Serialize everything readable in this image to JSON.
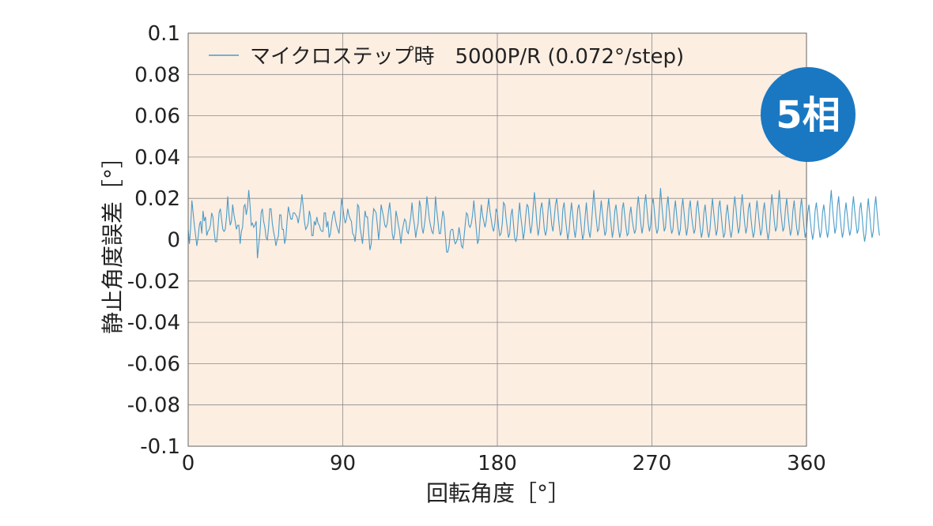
{
  "chart_data": {
    "type": "line",
    "xlabel": "回転角度［°］",
    "ylabel": "静止角度誤差［°］",
    "xlim": [
      0,
      360
    ],
    "ylim": [
      -0.1,
      0.1
    ],
    "xticks": [
      0,
      90,
      180,
      270,
      360
    ],
    "xtick_labels": [
      "0",
      "90",
      "180",
      "270",
      "360"
    ],
    "yticks": [
      0.1,
      0.08,
      0.06,
      0.04,
      0.02,
      0,
      -0.02,
      -0.04,
      -0.06,
      -0.08,
      -0.1
    ],
    "ytick_labels": [
      "0.1",
      "0.08",
      "0.06",
      "0.04",
      "0.02",
      "0",
      "-0.02",
      "-0.04",
      "-0.06",
      "-0.08",
      "-0.1"
    ],
    "grid": true,
    "legend_position": "top-left",
    "series": [
      {
        "name": "マイクロステップ時　5000P/R (0.072°/step)",
        "color": "#4a9cc9",
        "x_start": 0,
        "x_step": 0.72,
        "values": [
          0.005,
          -0.002,
          0.006,
          0.019,
          0.013,
          0.007,
          0.002,
          -0.003,
          0.001,
          0.007,
          0.009,
          0.003,
          0.014,
          0.009,
          0.011,
          0.002,
          0.004,
          0.005,
          0.007,
          0.013,
          0.011,
          0.004,
          -0.001,
          -0.001,
          0.005,
          0.013,
          0.015,
          0.01,
          0.005,
          0.004,
          0.005,
          0.011,
          0.021,
          0.012,
          0.007,
          0.009,
          0.017,
          0.012,
          0.009,
          0.005,
          0.007,
          0.007,
          -0.002,
          0.004,
          0.006,
          0.016,
          0.017,
          0.012,
          0.016,
          0.024,
          0.017,
          0.007,
          0.008,
          0.006,
          0.007,
          0.009,
          -0.009,
          -0.003,
          0.003,
          0.013,
          0.015,
          0.009,
          0.006,
          0.001,
          -0.0,
          0.006,
          0.015,
          0.015,
          0.008,
          0.004,
          0.001,
          -0.003,
          -0.0,
          0.002,
          0.012,
          0.012,
          0.005,
          0.005,
          -0.002,
          0.001,
          0.009,
          0.016,
          0.013,
          0.01,
          0.01,
          0.013,
          0.013,
          0.012,
          0.011,
          0.008,
          0.012,
          0.016,
          0.022,
          0.016,
          0.009,
          0.005,
          0.006,
          0.008,
          0.014,
          0.011,
          0.002,
          0.002,
          0.009,
          0.007,
          0.011,
          0.008,
          0.007,
          0.005,
          0.004,
          0.004,
          0.013,
          0.013,
          0.006,
          0.009,
          0.001,
          0.003,
          0.008,
          0.012,
          0.014,
          0.01,
          0.007,
          0.005,
          0.003,
          0.01,
          0.02,
          0.016,
          0.011,
          0.008,
          0.01,
          0.015,
          0.012,
          0.01,
          0.009,
          0.003,
          0.002,
          -0.001,
          0.006,
          0.017,
          0.016,
          0.006,
          0.002,
          -0.002,
          0.006,
          0.014,
          0.011,
          0.011,
          0.003,
          -0.005,
          -0.002,
          0.008,
          0.015,
          0.014,
          0.013,
          0.007,
          0.0,
          0.006,
          0.017,
          0.014,
          0.011,
          0.007,
          0.006,
          0.008,
          0.014,
          0.018,
          0.011,
          0.003,
          -0.0,
          0.003,
          0.014,
          0.011,
          0.007,
          0.004,
          -0.002,
          0.004,
          0.007,
          0.01,
          0.009,
          0.004,
          0.003,
          0.007,
          0.011,
          0.018,
          0.011,
          0.007,
          0.001,
          0.005,
          0.008,
          0.019,
          0.016,
          0.006,
          0.003,
          0.007,
          0.012,
          0.021,
          0.016,
          0.01,
          0.007,
          0.004,
          0.003,
          0.008,
          0.021,
          0.014,
          0.009,
          0.003,
          0.003,
          0.009,
          0.014,
          0.011,
          0.002,
          -0.006,
          -0.006,
          -0.003,
          0.004,
          0.005,
          0.005,
          0.0,
          -0.002,
          -0.001,
          0.001,
          0.006,
          0.002,
          -0.003,
          -0.004,
          0.001,
          0.007,
          0.013,
          0.012,
          0.007,
          0.006,
          0.008,
          0.012,
          0.019,
          0.012,
          0.005,
          -0.002,
          0.0,
          0.009,
          0.017,
          0.012,
          0.009,
          0.006,
          0.009,
          0.015,
          0.02,
          0.014,
          0.01,
          0.006,
          0.004,
          0.008,
          0.015,
          0.013,
          0.006,
          0.002,
          0.003,
          0.008,
          0.018,
          0.017,
          0.011,
          0.006,
          0.001,
          0.003,
          0.012,
          0.015,
          0.008,
          0.001,
          -0.001,
          0.002,
          0.011,
          0.018,
          0.011,
          0.006,
          0.0,
          0.004,
          0.012,
          0.017,
          0.016,
          0.008,
          0.003,
          0.007,
          0.016,
          0.023,
          0.016,
          0.008,
          0.002,
          0.006,
          0.015,
          0.018,
          0.012,
          0.005,
          0.002,
          0.005,
          0.014,
          0.02,
          0.014,
          0.007,
          0.004,
          0.01,
          0.017,
          0.02,
          0.014,
          0.007,
          0.002,
          0.004,
          0.015,
          0.018,
          0.011,
          0.005,
          0.0,
          0.004,
          0.012,
          0.018,
          0.012,
          0.005,
          0.001,
          0.006,
          0.015,
          0.017,
          0.012,
          0.005,
          0.0,
          0.003,
          0.011,
          0.018,
          0.01,
          0.004,
          0.001,
          0.007,
          0.015,
          0.024,
          0.016,
          0.01,
          0.004,
          0.005,
          0.012,
          0.019,
          0.013,
          0.007,
          0.002,
          0.004,
          0.014,
          0.02,
          0.014,
          0.007,
          0.001,
          0.005,
          0.014,
          0.017,
          0.011,
          0.005,
          0.001,
          0.004,
          0.015,
          0.018,
          0.012,
          0.006,
          0.002,
          0.003,
          0.012,
          0.016,
          0.01,
          0.006,
          0.003,
          0.005,
          0.015,
          0.021,
          0.015,
          0.008,
          0.003,
          0.007,
          0.017,
          0.022,
          0.015,
          0.008,
          0.004,
          0.007,
          0.017,
          0.02,
          0.014,
          0.007,
          0.003,
          0.005,
          0.015,
          0.025,
          0.017,
          0.01,
          0.004,
          0.006,
          0.016,
          0.021,
          0.014,
          0.007,
          0.003,
          0.005,
          0.014,
          0.019,
          0.012,
          0.006,
          0.002,
          0.005,
          0.015,
          0.02,
          0.013,
          0.007,
          0.002,
          0.006,
          0.015,
          0.019,
          0.012,
          0.007,
          0.003,
          0.005,
          0.015,
          0.019,
          0.013,
          0.006,
          0.001,
          0.004,
          0.013,
          0.017,
          0.011,
          0.004,
          0.001,
          0.005,
          0.014,
          0.02,
          0.013,
          0.007,
          0.002,
          0.005,
          0.016,
          0.019,
          0.012,
          0.006,
          0.001,
          0.003,
          0.012,
          0.017,
          0.011,
          0.005,
          0.001,
          0.005,
          0.015,
          0.021,
          0.015,
          0.008,
          0.003,
          0.006,
          0.016,
          0.022,
          0.015,
          0.008,
          0.003,
          0.006,
          0.015,
          0.018,
          0.011,
          0.005,
          0.001,
          0.004,
          0.013,
          0.019,
          0.013,
          0.007,
          0.002,
          0.005,
          0.014,
          0.018,
          0.011,
          0.004,
          0.0,
          0.004,
          0.014,
          0.022,
          0.016,
          0.009,
          0.004,
          0.006,
          0.016,
          0.024,
          0.015,
          0.009,
          0.004,
          0.006,
          0.015,
          0.02,
          0.013,
          0.007,
          0.002,
          0.005,
          0.014,
          0.019,
          0.012,
          0.006,
          0.002,
          0.005,
          0.015,
          0.02,
          0.013,
          0.006,
          0.001,
          0.004,
          0.013,
          0.017,
          0.01,
          0.004,
          -0.0,
          0.004,
          0.014,
          0.018,
          0.012,
          0.006,
          0.001,
          0.004,
          0.013,
          0.017,
          0.011,
          0.005,
          0.001,
          0.005,
          0.016,
          0.024,
          0.016,
          0.009,
          0.003,
          0.006,
          0.016,
          0.021,
          0.013,
          0.006,
          0.001,
          0.004,
          0.013,
          0.018,
          0.012,
          0.006,
          0.002,
          0.005,
          0.015,
          0.021,
          0.014,
          0.008,
          0.003,
          0.005,
          0.015,
          0.018,
          0.011,
          0.004,
          -0.001,
          0.003,
          0.013,
          0.02,
          0.013,
          0.006,
          0.001,
          0.004,
          0.015,
          0.021,
          0.014,
          0.007,
          0.002
        ]
      }
    ]
  },
  "badge": {
    "label": "5相",
    "color": "#1a78c2"
  },
  "colors": {
    "plot_background": "#fdeee2",
    "grid": "#8a8a8a",
    "axis": "#555555"
  }
}
